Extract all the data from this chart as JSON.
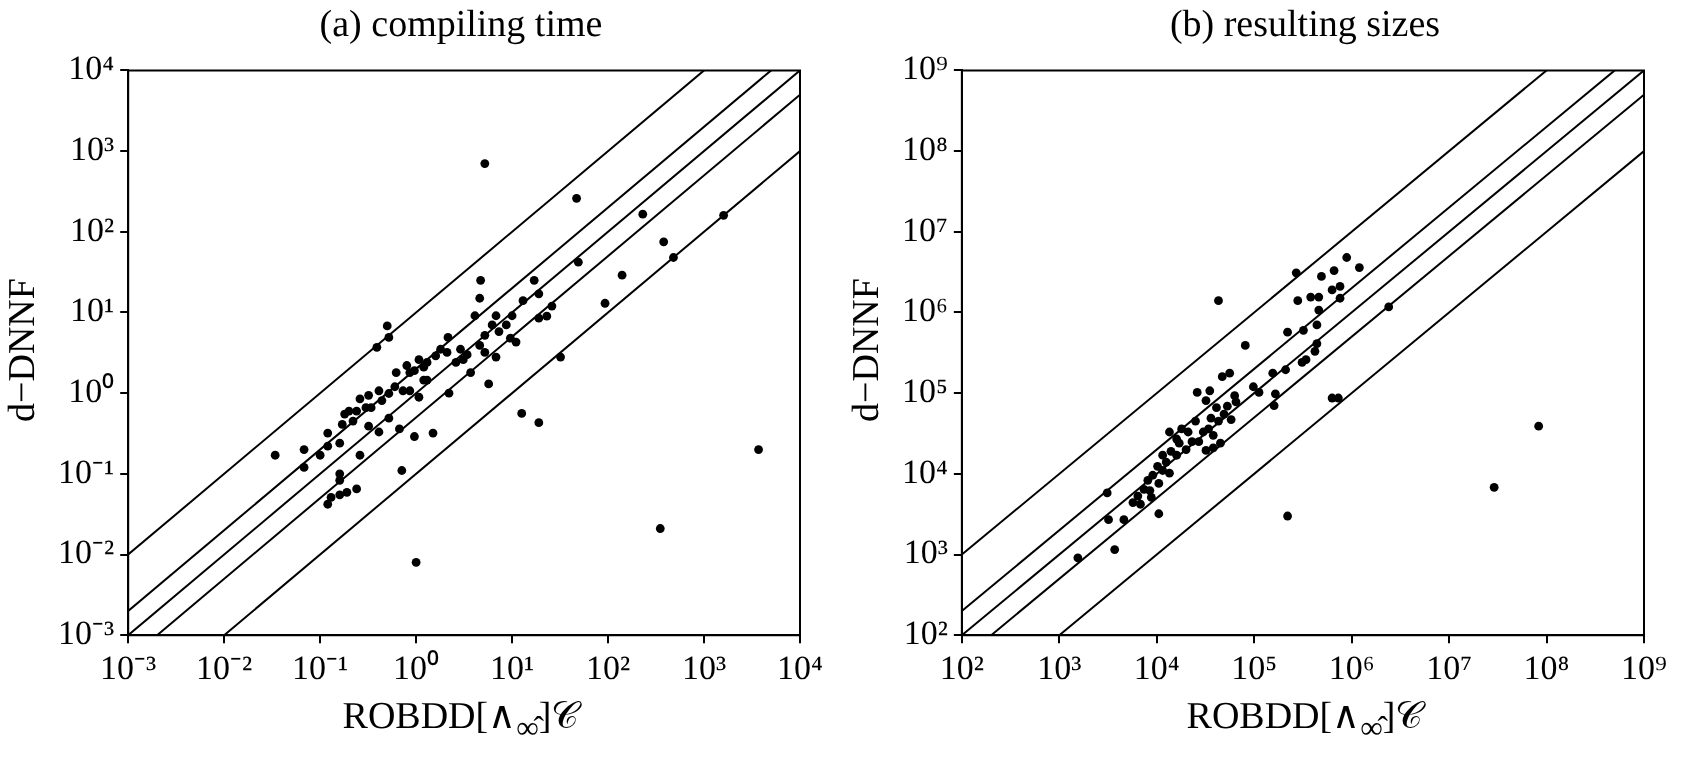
{
  "chart_data": [
    {
      "type": "scatter",
      "title": "(a) compiling time",
      "xlabel": "ROBDD[∧$_{∞̂}$]𝒞",
      "ylabel": "d−DNNF",
      "log": "xy",
      "xlim": [
        0.001,
        10000
      ],
      "ylim": [
        0.001,
        10000
      ],
      "xticks": [
        {
          "value": 0.001,
          "label": "10⁻³"
        },
        {
          "value": 0.01,
          "label": "10⁻²"
        },
        {
          "value": 0.1,
          "label": "10⁻¹"
        },
        {
          "value": 1,
          "label": "10⁰"
        },
        {
          "value": 10,
          "label": "10¹"
        },
        {
          "value": 100,
          "label": "10²"
        },
        {
          "value": 1000,
          "label": "10³"
        },
        {
          "value": 10000,
          "label": "10⁴"
        }
      ],
      "yticks": [
        {
          "value": 0.001,
          "label": "10⁻³"
        },
        {
          "value": 0.01,
          "label": "10⁻²"
        },
        {
          "value": 0.1,
          "label": "10⁻¹"
        },
        {
          "value": 1,
          "label": "10⁰"
        },
        {
          "value": 10,
          "label": "10¹"
        },
        {
          "value": 100,
          "label": "10²"
        },
        {
          "value": 1000,
          "label": "10³"
        },
        {
          "value": 10000,
          "label": "10⁴"
        }
      ],
      "series": [
        {
          "color": "#000000",
          "marker": "circle",
          "x": [
            5.2,
            47,
            230,
            1600,
            380,
            480,
            49,
            140,
            93,
            3700,
            350,
            1.0,
            32,
            12.6,
            19,
            4.7,
            4.6,
            17,
            19,
            26,
            19,
            23,
            5.7,
            0.5,
            0.52,
            0.39,
            0.034,
            0.068,
            0.068,
            0.1,
            0.12,
            0.12,
            0.16,
            0.17,
            0.18,
            0.22,
            0.26,
            0.16,
            0.16,
            0.12,
            0.13,
            0.16,
            0.19,
            0.24,
            0.71,
            0.96,
            1.5,
            0.41,
            0.32,
            0.24,
            0.3,
            0.32,
            0.41,
            0.44,
            0.52,
            0.6,
            0.62,
            0.8,
            0.86,
            0.96,
            1.07,
            1.2,
            1.2,
            1.3,
            1.6,
            1.8,
            2.1,
            2.15,
            2.2,
            2.9,
            3.1,
            3.7,
            4.1,
            4.6,
            5.2,
            6.2,
            6.8,
            7.3,
            8.7,
            9.6,
            11,
            10,
            6.8,
            5.2,
            0.67,
            0.52,
            0.34,
            0.26,
            0.2,
            0.73,
            0.86,
            1.07,
            1.3,
            2.6,
            3.4,
            13
          ],
          "values": [
            700,
            260,
            165,
            160,
            75,
            48,
            42,
            29,
            13,
            0.2,
            0.021,
            0.008,
            2.8,
            0.56,
            0.43,
            25,
            15,
            25,
            17,
            12,
            8.5,
            9,
            1.3,
            6.8,
            4.9,
            3.7,
            0.17,
            0.2,
            0.12,
            0.17,
            0.32,
            0.22,
            0.24,
            0.41,
            0.55,
            0.45,
            0.17,
            0.1,
            0.083,
            0.042,
            0.051,
            0.055,
            0.059,
            0.065,
            0.11,
            0.29,
            0.32,
            0.33,
            0.39,
            0.6,
            0.66,
            0.94,
            1.07,
            0.81,
            0.99,
            1.2,
            1.8,
            2.2,
            1.8,
            1.9,
            2.6,
            1.45,
            2.1,
            2.4,
            2.9,
            3.5,
            3.2,
            4.9,
            1.0,
            3.5,
            2.6,
            1.8,
            9.1,
            3.9,
            5.2,
            7,
            9.1,
            5.8,
            7,
            4.8,
            4.3,
            9.1,
            2.8,
            3.2,
            0.36,
            0.49,
            0.66,
            0.85,
            0.6,
            1.07,
            1.07,
            0.89,
            1.45,
            2.4,
            3.0,
            14
          ]
        },
        {
          "type": "line",
          "color": "#000000",
          "marker": "none",
          "x": [
            0.001,
            1000
          ],
          "values": [
            0.01,
            10000
          ]
        },
        {
          "type": "line",
          "color": "#000000",
          "marker": "none",
          "x": [
            0.001,
            5000
          ],
          "values": [
            0.002,
            10000
          ]
        },
        {
          "type": "line",
          "color": "#000000",
          "marker": "none",
          "x": [
            0.001,
            10000
          ],
          "values": [
            0.001,
            10000
          ]
        },
        {
          "type": "line",
          "color": "#000000",
          "marker": "none",
          "x": [
            0.002,
            10000
          ],
          "values": [
            0.001,
            5000
          ]
        },
        {
          "type": "line",
          "color": "#000000",
          "marker": "none",
          "x": [
            0.01,
            10000
          ],
          "values": [
            0.001,
            1000
          ]
        }
      ]
    },
    {
      "type": "scatter",
      "title": "(b) resulting sizes",
      "xlabel": "ROBDD[∧$_{∞̂}$]𝒞",
      "ylabel": "d−DNNF",
      "log": "xy",
      "xlim": [
        100,
        1000000000
      ],
      "ylim": [
        100,
        1000000000
      ],
      "xticks": [
        {
          "value": 100,
          "label": "10²"
        },
        {
          "value": 1000,
          "label": "10³"
        },
        {
          "value": 10000,
          "label": "10⁴"
        },
        {
          "value": 100000,
          "label": "10⁵"
        },
        {
          "value": 1000000,
          "label": "10⁶"
        },
        {
          "value": 10000000,
          "label": "10⁷"
        },
        {
          "value": 100000000,
          "label": "10⁸"
        },
        {
          "value": 1000000000,
          "label": "10⁹"
        }
      ],
      "yticks": [
        {
          "value": 100,
          "label": "10²"
        },
        {
          "value": 1000,
          "label": "10³"
        },
        {
          "value": 10000,
          "label": "10⁴"
        },
        {
          "value": 100000,
          "label": "10⁵"
        },
        {
          "value": 1000000,
          "label": "10⁶"
        },
        {
          "value": 10000000,
          "label": "10⁷"
        },
        {
          "value": 100000000,
          "label": "10⁸"
        },
        {
          "value": 1000000000,
          "label": "10⁹"
        }
      ],
      "series": [
        {
          "color": "#000000",
          "marker": "circle",
          "x": [
            1550,
            3700,
            3200,
            4600,
            3100,
            10500,
            220000,
            29000000,
            83000000,
            2400000,
            43000,
            270000,
            890000,
            1200000,
            660000,
            760000,
            490000,
            280000,
            380000,
            460000,
            630000,
            760000,
            460000,
            220000,
            320000,
            440000,
            440000,
            420000,
            340000,
            310000,
            155000,
            210000,
            165000,
            160000,
            630000,
            730000,
            81000,
            47000,
            56000,
            98000,
            112000,
            63000,
            35000,
            26000,
            32000,
            41000,
            53000,
            65000,
            49000,
            58000,
            43000,
            45000,
            38000,
            30000,
            25000,
            21000,
            23000,
            17000,
            14000,
            13500,
            16000,
            16000,
            12500,
            11500,
            10200,
            9100,
            8100,
            7400,
            6400,
            5700,
            6800,
            8800,
            10500,
            13500,
            20000,
            27000,
            32000,
            38000,
            8500,
            11500,
            18000,
            36000,
            34000
          ],
          "values": [
            910,
            1150,
            2700,
            2700,
            5800,
            3200,
            3000,
            6800,
            39000,
            1170000,
            1400000,
            3100000,
            4800000,
            3600000,
            3300000,
            2100000,
            2800000,
            1400000,
            1550000,
            1550000,
            1900000,
            1500000,
            1070000,
            570000,
            600000,
            700000,
            410000,
            330000,
            260000,
            240000,
            177000,
            195000,
            98000,
            70000,
            87000,
            87000,
            390000,
            160000,
            177000,
            120000,
            102000,
            93000,
            107000,
            102000,
            81000,
            66000,
            69000,
            78000,
            55000,
            47000,
            45000,
            24000,
            30000,
            33000,
            45000,
            33000,
            25000,
            24000,
            19000,
            33000,
            27000,
            17000,
            14000,
            11000,
            12400,
            9600,
            8300,
            6400,
            5300,
            4400,
            4200,
            5100,
            7600,
            10200,
            20000,
            25000,
            19500,
            21000,
            6200,
            17000,
            36000,
            49000,
            36000
          ]
        },
        {
          "type": "line",
          "color": "#000000",
          "marker": "none",
          "x": [
            100,
            100000000
          ],
          "values": [
            1000,
            1000000000
          ]
        },
        {
          "type": "line",
          "color": "#000000",
          "marker": "none",
          "x": [
            100,
            500000000
          ],
          "values": [
            200,
            1000000000
          ]
        },
        {
          "type": "line",
          "color": "#000000",
          "marker": "none",
          "x": [
            100,
            1000000000
          ],
          "values": [
            100,
            1000000000
          ]
        },
        {
          "type": "line",
          "color": "#000000",
          "marker": "none",
          "x": [
            200,
            1000000000
          ],
          "values": [
            100,
            500000000
          ]
        },
        {
          "type": "line",
          "color": "#000000",
          "marker": "none",
          "x": [
            1000,
            1000000000
          ],
          "values": [
            100,
            100000000
          ]
        }
      ]
    }
  ]
}
